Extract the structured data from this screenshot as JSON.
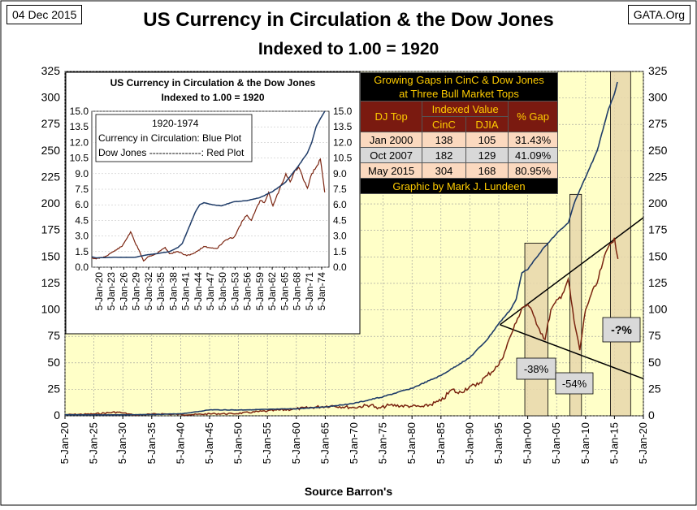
{
  "header": {
    "date": "04 Dec 2015",
    "source": "GATA.Org",
    "title": "US Currency in Circulation & the Dow Jones",
    "subtitle": "Indexed to 1.00 = 1920",
    "xlabel": "Source Barron's"
  },
  "table": {
    "title_line1": "Growing Gaps in CinC & Dow Jones",
    "title_line2": "at Three Bull Market Tops",
    "col_djtop": "DJ Top",
    "col_indexed": "Indexed Value",
    "col_cinc": "CinC",
    "col_djia": "DJIA",
    "col_gap": "% Gap",
    "rows": [
      {
        "date": "Jan 2000",
        "cinc": "138",
        "djia": "105",
        "gap": "31.43%"
      },
      {
        "date": "Oct 2007",
        "cinc": "182",
        "djia": "129",
        "gap": "41.09%"
      },
      {
        "date": "May 2015",
        "cinc": "304",
        "djia": "168",
        "gap": "80.95%"
      }
    ],
    "credit": "Graphic by Mark J. Lundeen"
  },
  "colors": {
    "plot_bg": "#ffffc8",
    "currency": "#1f3c68",
    "dow": "#7a2410",
    "highlight": "#e8d7ac",
    "table_header": "#7a1a10",
    "table_text": "#ffcc00"
  },
  "chart_data": [
    {
      "id": "main",
      "type": "line",
      "title": "US Currency in Circulation & the Dow Jones",
      "subtitle": "Indexed to 1.00 = 1920",
      "xlabel": "Source Barron's",
      "ylim": [
        0,
        325
      ],
      "yticks": [
        0,
        25,
        50,
        75,
        100,
        125,
        150,
        175,
        200,
        225,
        250,
        275,
        300,
        325
      ],
      "xlim": [
        1920,
        2020
      ],
      "xticks": [
        "5-Jan-20",
        "5-Jan-25",
        "5-Jan-30",
        "5-Jan-35",
        "5-Jan-40",
        "5-Jan-45",
        "5-Jan-50",
        "5-Jan-55",
        "5-Jan-60",
        "5-Jan-65",
        "5-Jan-70",
        "5-Jan-75",
        "5-Jan-80",
        "5-Jan-85",
        "5-Jan-90",
        "5-Jan-95",
        "5-Jan-00",
        "5-Jan-05",
        "5-Jan-10",
        "5-Jan-15",
        "5-Jan-20"
      ],
      "series": [
        {
          "name": "Currency in Circulation",
          "color": "#1f3c68",
          "points": [
            [
              1920,
              1.0
            ],
            [
              1925,
              0.9
            ],
            [
              1930,
              0.9
            ],
            [
              1933,
              1.1
            ],
            [
              1935,
              1.2
            ],
            [
              1940,
              1.9
            ],
            [
              1942,
              3.2
            ],
            [
              1945,
              5.6
            ],
            [
              1950,
              5.5
            ],
            [
              1955,
              6.0
            ],
            [
              1960,
              6.6
            ],
            [
              1965,
              8.4
            ],
            [
              1970,
              11.8
            ],
            [
              1972,
              14.2
            ],
            [
              1975,
              18
            ],
            [
              1980,
              26
            ],
            [
              1985,
              38
            ],
            [
              1990,
              55
            ],
            [
              1993,
              72
            ],
            [
              1995,
              87
            ],
            [
              1997,
              100
            ],
            [
              1998,
              110
            ],
            [
              1999,
              135
            ],
            [
              2000,
              138
            ],
            [
              2001,
              146
            ],
            [
              2003,
              160
            ],
            [
              2005,
              172
            ],
            [
              2007,
              182
            ],
            [
              2008,
              200
            ],
            [
              2009,
              213
            ],
            [
              2010,
              225
            ],
            [
              2012,
              250
            ],
            [
              2013,
              270
            ],
            [
              2014,
              290
            ],
            [
              2015,
              304
            ],
            [
              2015.5,
              315
            ]
          ]
        },
        {
          "name": "Dow Jones",
          "color": "#7a2410",
          "points": [
            [
              1920,
              1.0
            ],
            [
              1925,
              1.7
            ],
            [
              1929,
              3.5
            ],
            [
              1930,
              2.7
            ],
            [
              1932,
              0.6
            ],
            [
              1935,
              1.5
            ],
            [
              1937,
              1.9
            ],
            [
              1938,
              1.4
            ],
            [
              1942,
              1.1
            ],
            [
              1946,
              2.0
            ],
            [
              1949,
              1.9
            ],
            [
              1955,
              4.5
            ],
            [
              1960,
              6.5
            ],
            [
              1966,
              9.5
            ],
            [
              1970,
              7.7
            ],
            [
              1973,
              10.5
            ],
            [
              1974,
              6.6
            ],
            [
              1976,
              10
            ],
            [
              1980,
              9
            ],
            [
              1982,
              8.5
            ],
            [
              1985,
              14
            ],
            [
              1987,
              25
            ],
            [
              1988,
              21
            ],
            [
              1990,
              28
            ],
            [
              1991,
              28
            ],
            [
              1993,
              38
            ],
            [
              1995,
              48
            ],
            [
              1996,
              60
            ],
            [
              1997,
              75
            ],
            [
              1998,
              88
            ],
            [
              1999,
              102
            ],
            [
              2000,
              105
            ],
            [
              2001,
              95
            ],
            [
              2002,
              82
            ],
            [
              2003,
              72
            ],
            [
              2004,
              100
            ],
            [
              2006,
              115
            ],
            [
              2007,
              129
            ],
            [
              2008,
              90
            ],
            [
              2009,
              62
            ],
            [
              2010,
              100
            ],
            [
              2011,
              115
            ],
            [
              2012,
              125
            ],
            [
              2013,
              145
            ],
            [
              2014,
              160
            ],
            [
              2015,
              168
            ],
            [
              2015.6,
              148
            ]
          ]
        }
      ],
      "highlights": [
        {
          "x_start": 1999.5,
          "x_end": 2003.5
        },
        {
          "x_start": 2007.3,
          "x_end": 2009.3
        },
        {
          "x_start": 2014.3,
          "x_end": 2017.8
        }
      ],
      "annotations": [
        "-38%",
        "-54%",
        "-?%"
      ]
    },
    {
      "id": "inset",
      "type": "line",
      "title": "US Currency in Circulation & the Dow Jones",
      "subtitle": "Indexed to 1.00 = 1920",
      "legend_title": "1920-1974",
      "legend_line1": "Currency in Circulation: Blue Plot",
      "legend_line2": "Dow Jones   ----------------: Red Plot",
      "ylim": [
        0,
        15
      ],
      "yticks": [
        "0.0",
        "1.5",
        "3.0",
        "4.5",
        "6.0",
        "7.5",
        "9.0",
        "10.5",
        "12.0",
        "13.5",
        "15.0"
      ],
      "xlim": [
        1920,
        1975
      ],
      "xticks": [
        "5-Jan-20",
        "5-Jan-23",
        "5-Jan-26",
        "5-Jan-29",
        "5-Jan-32",
        "5-Jan-35",
        "5-Jan-38",
        "5-Jan-41",
        "5-Jan-44",
        "5-Jan-47",
        "5-Jan-50",
        "5-Jan-53",
        "5-Jan-56",
        "5-Jan-59",
        "5-Jan-62",
        "5-Jan-65",
        "5-Jan-68",
        "5-Jan-71",
        "5-Jan-74"
      ],
      "series": [
        {
          "name": "Currency in Circulation",
          "color": "#1f3c68",
          "points": [
            [
              1920,
              1.0
            ],
            [
              1921,
              0.9
            ],
            [
              1925,
              0.95
            ],
            [
              1930,
              0.95
            ],
            [
              1933,
              1.2
            ],
            [
              1935,
              1.3
            ],
            [
              1938,
              1.5
            ],
            [
              1940,
              1.9
            ],
            [
              1941,
              2.3
            ],
            [
              1942,
              3.3
            ],
            [
              1943,
              4.3
            ],
            [
              1944,
              5.3
            ],
            [
              1945,
              6.0
            ],
            [
              1946,
              6.2
            ],
            [
              1948,
              6.0
            ],
            [
              1950,
              5.9
            ],
            [
              1953,
              6.3
            ],
            [
              1956,
              6.4
            ],
            [
              1959,
              6.7
            ],
            [
              1962,
              7.3
            ],
            [
              1965,
              8.2
            ],
            [
              1968,
              9.8
            ],
            [
              1970,
              11.0
            ],
            [
              1971,
              12.0
            ],
            [
              1972,
              13.5
            ],
            [
              1973,
              14.3
            ],
            [
              1974,
              15.0
            ]
          ]
        },
        {
          "name": "Dow Jones",
          "color": "#7a2410",
          "points": [
            [
              1920,
              0.9
            ],
            [
              1921,
              0.8
            ],
            [
              1923,
              1.0
            ],
            [
              1925,
              1.5
            ],
            [
              1927,
              2.0
            ],
            [
              1929,
              3.4
            ],
            [
              1930,
              2.4
            ],
            [
              1931,
              1.6
            ],
            [
              1932,
              0.6
            ],
            [
              1933,
              1.0
            ],
            [
              1935,
              1.3
            ],
            [
              1937,
              1.9
            ],
            [
              1938,
              1.3
            ],
            [
              1940,
              1.5
            ],
            [
              1942,
              1.1
            ],
            [
              1944,
              1.4
            ],
            [
              1946,
              2.0
            ],
            [
              1947,
              1.9
            ],
            [
              1949,
              1.8
            ],
            [
              1951,
              2.6
            ],
            [
              1953,
              2.9
            ],
            [
              1955,
              4.5
            ],
            [
              1956,
              5.0
            ],
            [
              1957,
              4.5
            ],
            [
              1959,
              6.4
            ],
            [
              1960,
              6.2
            ],
            [
              1961,
              7.2
            ],
            [
              1962,
              5.9
            ],
            [
              1965,
              9.0
            ],
            [
              1966,
              8.2
            ],
            [
              1967,
              9.2
            ],
            [
              1968,
              9.6
            ],
            [
              1969,
              8.5
            ],
            [
              1970,
              7.6
            ],
            [
              1971,
              9.0
            ],
            [
              1972,
              9.6
            ],
            [
              1973,
              10.4
            ],
            [
              1974,
              7.2
            ]
          ]
        }
      ]
    }
  ]
}
